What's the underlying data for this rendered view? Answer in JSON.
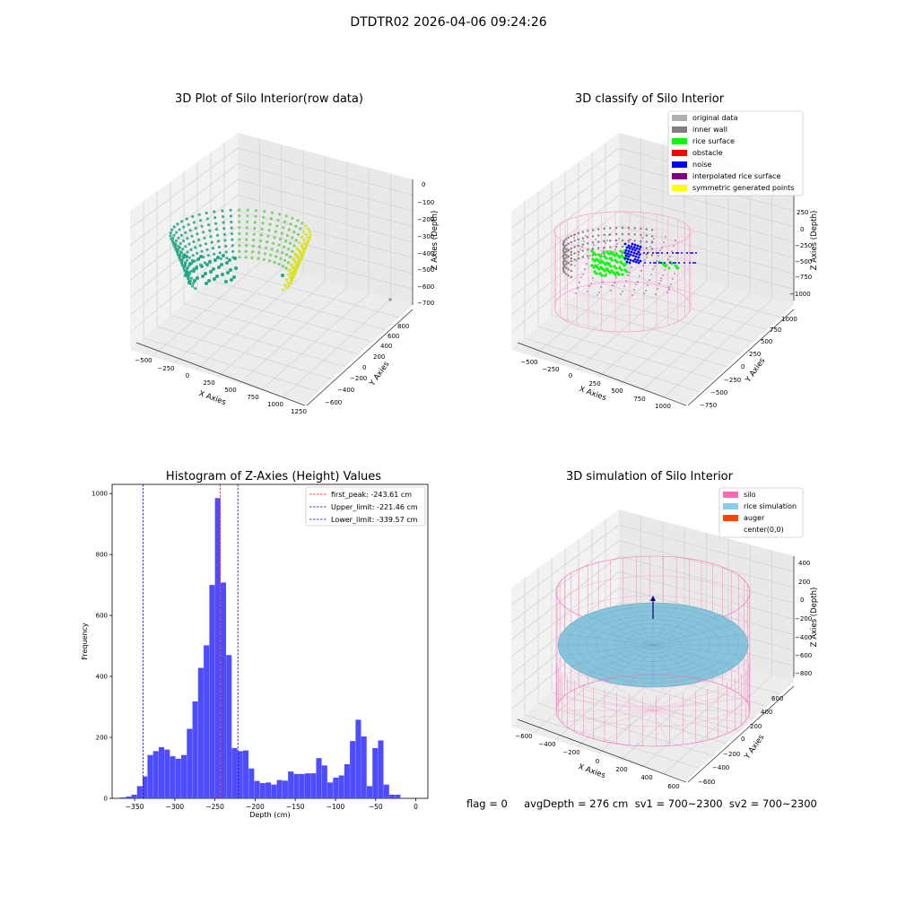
{
  "header": {
    "suptitle": "DTDTR02 2026-04-06 09:24:26"
  },
  "panel_3d_raw": {
    "title": "3D Plot of Silo Interior(row data)",
    "xlabel": "X Axies",
    "ylabel": "Y Axies",
    "zlabel": "Z Axies (Depth)",
    "xticks": [
      "−500",
      "−250",
      "0",
      "250",
      "500",
      "750",
      "1000",
      "1250"
    ],
    "yticks": [
      "−600",
      "−400",
      "−200",
      "0",
      "200",
      "400",
      "600",
      "800"
    ],
    "zticks": [
      "0",
      "−100",
      "−200",
      "−300",
      "−400",
      "−500",
      "−600",
      "−700"
    ]
  },
  "panel_3d_classify": {
    "title": "3D classify of Silo Interior",
    "xlabel": "X Axies",
    "ylabel": "Y Axies",
    "zlabel": "Z Axies (Depth)",
    "xticks": [
      "−500",
      "−250",
      "0",
      "250",
      "500",
      "750",
      "1000"
    ],
    "yticks": [
      "−750",
      "−500",
      "−250",
      "0",
      "250",
      "500",
      "750",
      "1000"
    ],
    "zticks": [
      "250",
      "0",
      "−250",
      "−500",
      "−750",
      "−1000"
    ],
    "legend": [
      {
        "label": "original data",
        "color": "#b0b0b0"
      },
      {
        "label": "inner wall",
        "color": "#808080"
      },
      {
        "label": "rice surface",
        "color": "#00ff00"
      },
      {
        "label": "obstacle",
        "color": "#ff0000"
      },
      {
        "label": "noise",
        "color": "#0000ff"
      },
      {
        "label": "interpolated rice surface",
        "color": "#800080"
      },
      {
        "label": "symmetric generated points",
        "color": "#ffff00"
      }
    ]
  },
  "panel_3d_sim": {
    "title": "3D simulation of Silo Interior",
    "xlabel": "X Axies",
    "ylabel": "Y Axies",
    "zlabel": "Z Axies (Depth)",
    "xticks": [
      "−600",
      "−400",
      "−200",
      "0",
      "200",
      "400",
      "600"
    ],
    "yticks": [
      "−600",
      "−400",
      "−200",
      "0",
      "200",
      "400",
      "600"
    ],
    "zticks": [
      "400",
      "200",
      "0",
      "−200",
      "−400",
      "−600",
      "−800"
    ],
    "legend": [
      {
        "label": "silo",
        "color": "#ff69b4"
      },
      {
        "label": "rice simulation",
        "color": "#87ceeb"
      },
      {
        "label": "auger",
        "color": "#ff4500"
      },
      {
        "label": "center(0,0)",
        "color": ""
      }
    ]
  },
  "chart_data": {
    "type": "bar",
    "title": "Histogram of Z-Axies (Height) Values",
    "xlabel": "Depth (cm)",
    "ylabel": "Frequency",
    "xlim": [
      -378,
      15
    ],
    "ylim": [
      0,
      1030
    ],
    "xticks": [
      -350,
      -300,
      -250,
      -200,
      -150,
      -100,
      -50,
      0
    ],
    "yticks": [
      0,
      200,
      400,
      600,
      800,
      1000
    ],
    "bar_color": "#4d4dff",
    "bins": [
      {
        "x0": -368,
        "x1": -361,
        "value": 3
      },
      {
        "x0": -361,
        "x1": -354,
        "value": 6
      },
      {
        "x0": -354,
        "x1": -347,
        "value": 12
      },
      {
        "x0": -347,
        "x1": -340,
        "value": 40
      },
      {
        "x0": -340,
        "x1": -334,
        "value": 72
      },
      {
        "x0": -334,
        "x1": -327,
        "value": 142
      },
      {
        "x0": -327,
        "x1": -320,
        "value": 155
      },
      {
        "x0": -320,
        "x1": -313,
        "value": 168
      },
      {
        "x0": -313,
        "x1": -306,
        "value": 160
      },
      {
        "x0": -306,
        "x1": -299,
        "value": 138
      },
      {
        "x0": -299,
        "x1": -292,
        "value": 130
      },
      {
        "x0": -292,
        "x1": -285,
        "value": 142
      },
      {
        "x0": -285,
        "x1": -278,
        "value": 228
      },
      {
        "x0": -278,
        "x1": -271,
        "value": 318
      },
      {
        "x0": -271,
        "x1": -264,
        "value": 428
      },
      {
        "x0": -264,
        "x1": -257,
        "value": 502
      },
      {
        "x0": -257,
        "x1": -250,
        "value": 700
      },
      {
        "x0": -250,
        "x1": -243,
        "value": 985
      },
      {
        "x0": -243,
        "x1": -236,
        "value": 708
      },
      {
        "x0": -236,
        "x1": -229,
        "value": 470
      },
      {
        "x0": -229,
        "x1": -222,
        "value": 165
      },
      {
        "x0": -222,
        "x1": -215,
        "value": 155
      },
      {
        "x0": -215,
        "x1": -208,
        "value": 157
      },
      {
        "x0": -208,
        "x1": -201,
        "value": 98
      },
      {
        "x0": -201,
        "x1": -194,
        "value": 57
      },
      {
        "x0": -194,
        "x1": -187,
        "value": 50
      },
      {
        "x0": -187,
        "x1": -180,
        "value": 52
      },
      {
        "x0": -180,
        "x1": -173,
        "value": 45
      },
      {
        "x0": -173,
        "x1": -166,
        "value": 60
      },
      {
        "x0": -166,
        "x1": -159,
        "value": 58
      },
      {
        "x0": -159,
        "x1": -152,
        "value": 88
      },
      {
        "x0": -152,
        "x1": -145,
        "value": 80
      },
      {
        "x0": -145,
        "x1": -138,
        "value": 80
      },
      {
        "x0": -138,
        "x1": -131,
        "value": 82
      },
      {
        "x0": -131,
        "x1": -124,
        "value": 82
      },
      {
        "x0": -124,
        "x1": -117,
        "value": 132
      },
      {
        "x0": -117,
        "x1": -110,
        "value": 108
      },
      {
        "x0": -110,
        "x1": -103,
        "value": 52
      },
      {
        "x0": -103,
        "x1": -96,
        "value": 68
      },
      {
        "x0": -96,
        "x1": -89,
        "value": 75
      },
      {
        "x0": -89,
        "x1": -82,
        "value": 112
      },
      {
        "x0": -82,
        "x1": -75,
        "value": 188
      },
      {
        "x0": -75,
        "x1": -68,
        "value": 258
      },
      {
        "x0": -68,
        "x1": -61,
        "value": 203
      },
      {
        "x0": -61,
        "x1": -54,
        "value": 40
      },
      {
        "x0": -54,
        "x1": -47,
        "value": 165
      },
      {
        "x0": -47,
        "x1": -40,
        "value": 190
      },
      {
        "x0": -40,
        "x1": -33,
        "value": 45
      },
      {
        "x0": -33,
        "x1": -26,
        "value": 12
      },
      {
        "x0": -26,
        "x1": -19,
        "value": 12
      }
    ],
    "vlines": [
      {
        "name": "first_peak",
        "x": -243.61,
        "color": "#ff0000"
      },
      {
        "name": "Upper_limit",
        "x": -221.46,
        "color": "#0000cc"
      },
      {
        "name": "Lower_limit",
        "x": -339.57,
        "color": "#0000cc"
      }
    ],
    "legend": [
      {
        "label": "first_peak: -243.61 cm",
        "color": "#ff0000"
      },
      {
        "label": "Upper_limit: -221.46 cm",
        "color": "#0000cc"
      },
      {
        "label": "Lower_limit: -339.57 cm",
        "color": "#0000cc"
      }
    ],
    "legend_position": "top-right",
    "grid": false
  },
  "footer": {
    "text": "flag = 0     avgDepth = 276 cm  sv1 = 700~2300  sv2 = 700~2300"
  }
}
